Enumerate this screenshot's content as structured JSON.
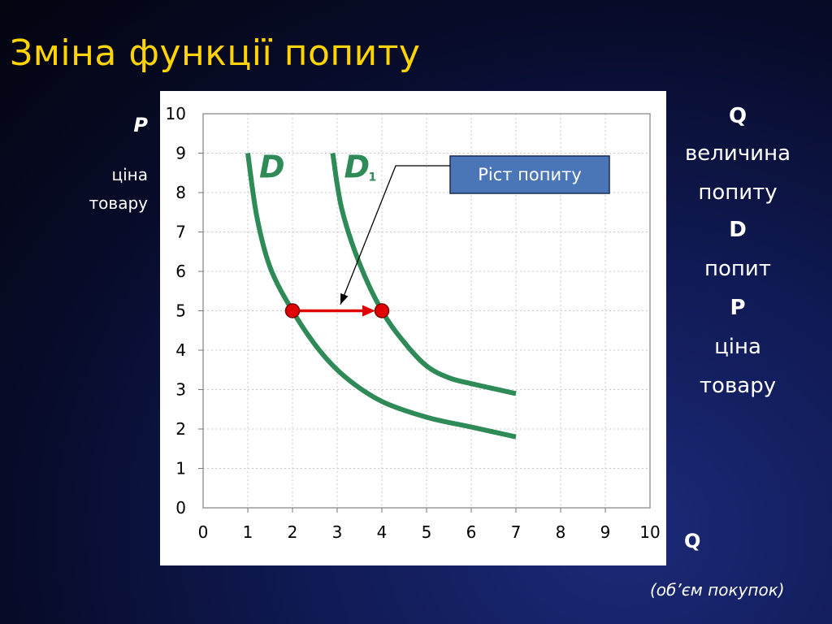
{
  "slide": {
    "title": "Зміна функції попиту",
    "y_axis_symbol": "P",
    "y_axis_word1": "ціна",
    "y_axis_word2": "товару",
    "x_axis_symbol": "Q",
    "x_axis_sub": "(об’єм покупок)"
  },
  "legend_panel": [
    {
      "text": "Q",
      "bold": true
    },
    {
      "text": "величина",
      "bold": false
    },
    {
      "text": "попиту",
      "bold": false
    },
    {
      "text": "D",
      "bold": true
    },
    {
      "text": "попит",
      "bold": false
    },
    {
      "text": "P",
      "bold": true
    },
    {
      "text": "ціна",
      "bold": false
    },
    {
      "text": "товару",
      "bold": false
    }
  ],
  "colors": {
    "title": "#ffd400",
    "curve": "#2e8b57",
    "shift_arrow": "#e00000",
    "point_fill": "#e00000",
    "callout_bg": "#4a76b8",
    "grid": "#c8c8c8"
  },
  "chart_data": {
    "type": "line",
    "xlim": [
      0,
      10
    ],
    "ylim": [
      0,
      10
    ],
    "x_ticks": [
      "0",
      "1",
      "2",
      "3",
      "4",
      "5",
      "6",
      "7",
      "8",
      "9",
      "10"
    ],
    "y_ticks": [
      "0",
      "1",
      "2",
      "3",
      "4",
      "5",
      "6",
      "7",
      "8",
      "9",
      "10"
    ],
    "grid": true,
    "series": [
      {
        "name": "D",
        "label_main": "D",
        "label_sub": "",
        "points": [
          [
            1.0,
            9.0
          ],
          [
            1.2,
            7.4
          ],
          [
            1.5,
            6.1
          ],
          [
            2.0,
            5.0
          ],
          [
            2.6,
            4.0
          ],
          [
            3.2,
            3.3
          ],
          [
            4.0,
            2.7
          ],
          [
            5.0,
            2.3
          ],
          [
            6.0,
            2.05
          ],
          [
            7.0,
            1.8
          ]
        ]
      },
      {
        "name": "D1",
        "label_main": "D",
        "label_sub": "1",
        "points": [
          [
            2.9,
            9.0
          ],
          [
            3.1,
            7.6
          ],
          [
            3.5,
            6.2
          ],
          [
            4.0,
            5.0
          ],
          [
            4.5,
            4.2
          ],
          [
            5.0,
            3.6
          ],
          [
            5.5,
            3.3
          ],
          [
            6.0,
            3.15
          ],
          [
            7.0,
            2.9
          ]
        ]
      }
    ],
    "shift": {
      "from": [
        2.0,
        5.0
      ],
      "to": [
        4.0,
        5.0
      ]
    },
    "annotation": {
      "text": "Ріст попиту",
      "target": [
        3.0,
        5.2
      ]
    }
  }
}
